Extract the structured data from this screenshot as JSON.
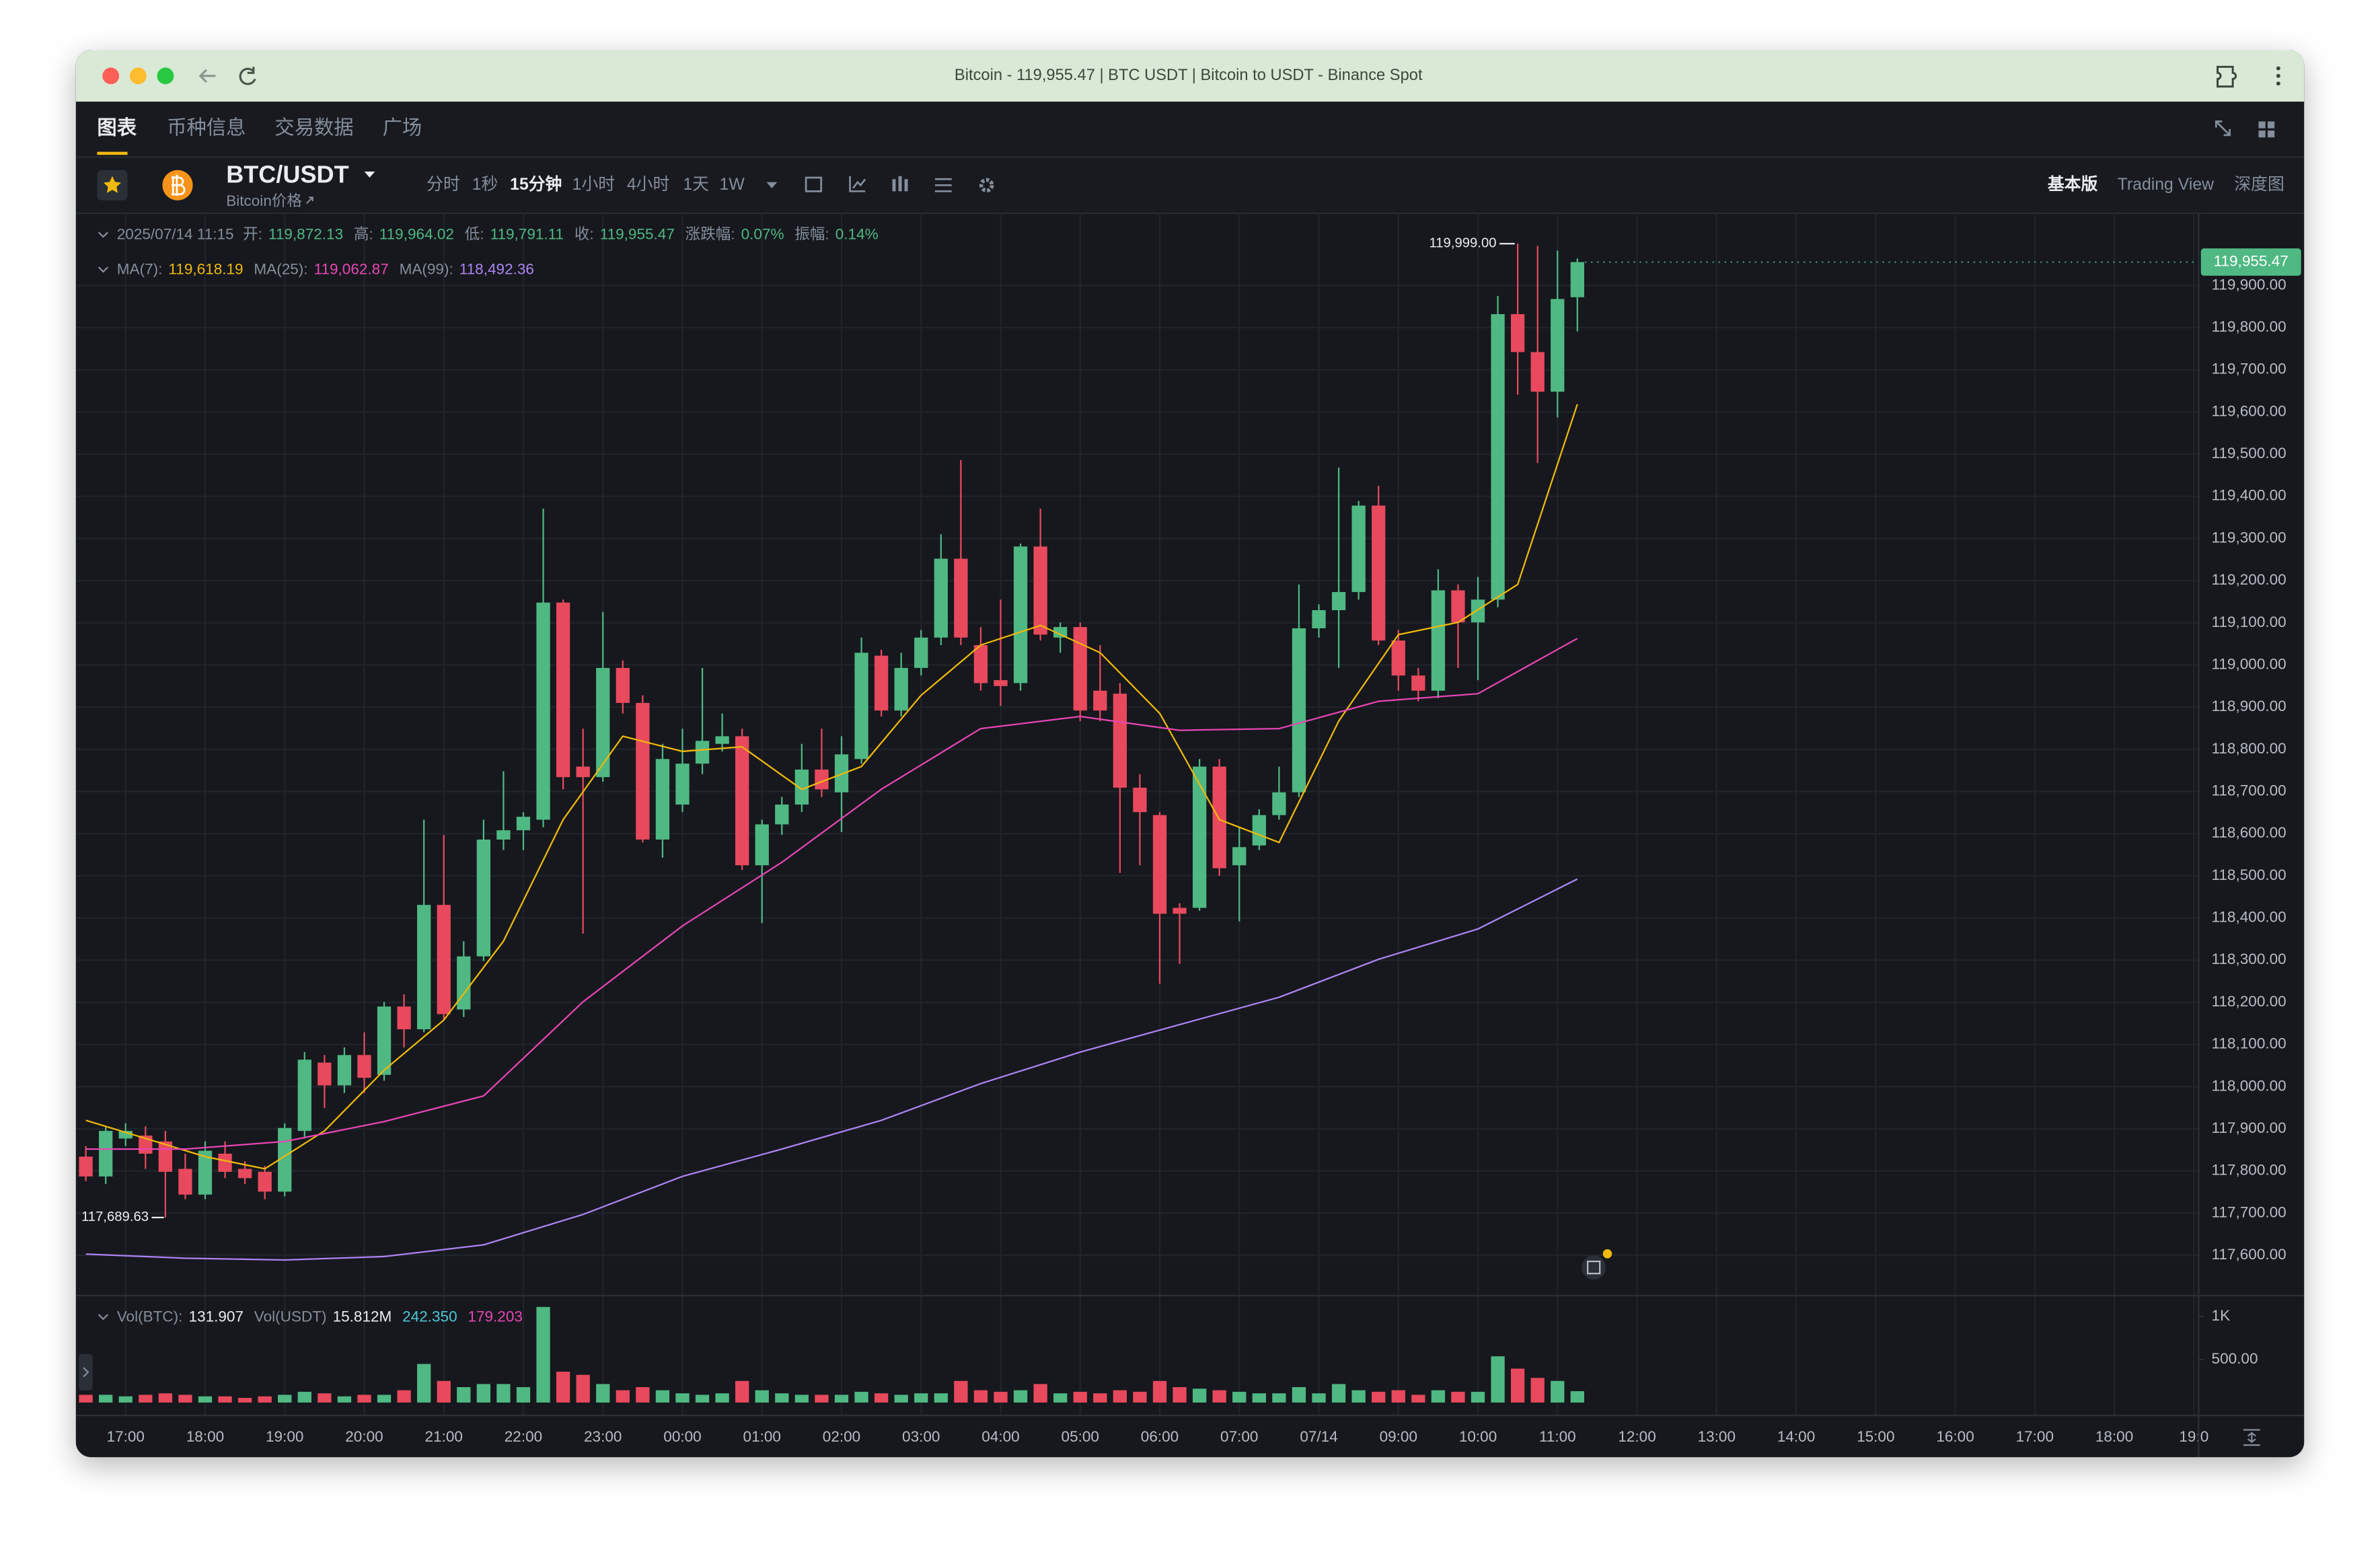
{
  "browser": {
    "title": "Bitcoin - 119,955.47 | BTC USDT | Bitcoin to USDT - Binance Spot"
  },
  "tabs": [
    "图表",
    "币种信息",
    "交易数据",
    "广场"
  ],
  "symbol": {
    "pair": "BTC/USDT",
    "subtitle": "Bitcoin价格"
  },
  "intervals": [
    "分时",
    "1秒",
    "15分钟",
    "1小时",
    "4小时",
    "1天",
    "1W"
  ],
  "views": [
    "基本版",
    "Trading View",
    "深度图"
  ],
  "info": {
    "time": "2025/07/14 11:15",
    "items": [
      {
        "label": "开:",
        "value": "119,872.13"
      },
      {
        "label": "高:",
        "value": "119,964.02"
      },
      {
        "label": "低:",
        "value": "119,791.11"
      },
      {
        "label": "收:",
        "value": "119,955.47"
      },
      {
        "label": "涨跌幅:",
        "value": "0.07%"
      },
      {
        "label": "振幅:",
        "value": "0.14%"
      }
    ]
  },
  "chart_data": {
    "type": "candlestick",
    "up_color": "#4fb883",
    "down_color": "#e8495d",
    "grid": true,
    "xlim": [
      -0.5,
      106.2
    ],
    "xticks": [
      {
        "value": 2,
        "label": "17:00"
      },
      {
        "value": 6,
        "label": "18:00"
      },
      {
        "value": 10,
        "label": "19:00"
      },
      {
        "value": 14,
        "label": "20:00"
      },
      {
        "value": 18,
        "label": "21:00"
      },
      {
        "value": 22,
        "label": "22:00"
      },
      {
        "value": 26,
        "label": "23:00"
      },
      {
        "value": 30,
        "label": "00:00"
      },
      {
        "value": 34,
        "label": "01:00"
      },
      {
        "value": 38,
        "label": "02:00"
      },
      {
        "value": 42,
        "label": "03:00"
      },
      {
        "value": 46,
        "label": "04:00"
      },
      {
        "value": 50,
        "label": "05:00"
      },
      {
        "value": 54,
        "label": "06:00"
      },
      {
        "value": 58,
        "label": "07:00"
      },
      {
        "value": 62,
        "label": "07/14"
      },
      {
        "value": 66,
        "label": "09:00"
      },
      {
        "value": 70,
        "label": "10:00"
      },
      {
        "value": 74,
        "label": "11:00"
      },
      {
        "value": 78,
        "label": "12:00"
      },
      {
        "value": 82,
        "label": "13:00"
      },
      {
        "value": 86,
        "label": "14:00"
      },
      {
        "value": 90,
        "label": "15:00"
      },
      {
        "value": 94,
        "label": "16:00"
      },
      {
        "value": 98,
        "label": "17:00"
      },
      {
        "value": 102,
        "label": "18:00"
      },
      {
        "value": 106,
        "label": "19:0"
      }
    ],
    "ylim": [
      117510,
      120073
    ],
    "yticks": [
      {
        "value": 117600,
        "label": "117,600.00"
      },
      {
        "value": 117700,
        "label": "117,700.00"
      },
      {
        "value": 117800,
        "label": "117,800.00"
      },
      {
        "value": 117900,
        "label": "117,900.00"
      },
      {
        "value": 118000,
        "label": "118,000.00"
      },
      {
        "value": 118100,
        "label": "118,100.00"
      },
      {
        "value": 118200,
        "label": "118,200.00"
      },
      {
        "value": 118300,
        "label": "118,300.00"
      },
      {
        "value": 118400,
        "label": "118,400.00"
      },
      {
        "value": 118500,
        "label": "118,500.00"
      },
      {
        "value": 118600,
        "label": "118,600.00"
      },
      {
        "value": 118700,
        "label": "118,700.00"
      },
      {
        "value": 118800,
        "label": "118,800.00"
      },
      {
        "value": 118900,
        "label": "118,900.00"
      },
      {
        "value": 119000,
        "label": "119,000.00"
      },
      {
        "value": 119100,
        "label": "119,100.00"
      },
      {
        "value": 119200,
        "label": "119,200.00"
      },
      {
        "value": 119300,
        "label": "119,300.00"
      },
      {
        "value": 119400,
        "label": "119,400.00"
      },
      {
        "value": 119500,
        "label": "119,500.00"
      },
      {
        "value": 119600,
        "label": "119,600.00"
      },
      {
        "value": 119700,
        "label": "119,700.00"
      },
      {
        "value": 119800,
        "label": "119,800.00"
      },
      {
        "value": 119900,
        "label": "119,900.00"
      }
    ],
    "open": [
      117834,
      117787,
      117877,
      117884,
      117870,
      117805,
      117744,
      117841,
      117805,
      117798,
      117751,
      117895,
      118057,
      118003,
      118075,
      118028,
      118190,
      118136,
      118431,
      118183,
      118309,
      118586,
      118608,
      118633,
      119148,
      118759,
      118734,
      118993,
      118910,
      118586,
      118669,
      118766,
      118813,
      118831,
      118525,
      118622,
      118669,
      118752,
      118698,
      118777,
      119022,
      118892,
      118993,
      119065,
      119252,
      119047,
      118964,
      118957,
      119281,
      119065,
      119090,
      118939,
      118932,
      118709,
      118644,
      118424,
      118424,
      118759,
      118525,
      118572,
      118644,
      118698,
      119087,
      119130,
      119173,
      119378,
      119058,
      118975,
      118939,
      119177,
      119101,
      119155,
      119832,
      119742,
      119648,
      119872.13
    ],
    "high": [
      117859,
      117906,
      117913,
      117906,
      117895,
      117841,
      117870,
      117870,
      117823,
      117812,
      117913,
      118082,
      118075,
      118093,
      118129,
      118201,
      118219,
      118633,
      118597,
      118345,
      118633,
      118748,
      118651,
      119371,
      119155,
      118849,
      119126,
      119011,
      118928,
      118813,
      118849,
      118993,
      118885,
      118849,
      118633,
      118687,
      118813,
      118849,
      118831,
      119065,
      119036,
      119029,
      119083,
      119310,
      119486,
      119090,
      119155,
      119288,
      119371,
      119101,
      119101,
      119047,
      118957,
      118741,
      118651,
      118435,
      118777,
      118777,
      118615,
      118658,
      118759,
      119191,
      119144,
      119468,
      119389,
      119425,
      119083,
      118993,
      119227,
      119191,
      119209,
      119875,
      119999,
      119994,
      119983,
      119964.02
    ],
    "low": [
      117776,
      117769,
      117859,
      117805,
      117689.63,
      117733,
      117733,
      117783,
      117769,
      117733,
      117740,
      117877,
      117949,
      117985,
      117985,
      118014,
      118093,
      118129,
      118158,
      118165,
      118298,
      118561,
      118561,
      118615,
      118705,
      118363,
      118723,
      118885,
      118579,
      118543,
      118651,
      118741,
      118795,
      118514,
      118388,
      118597,
      118651,
      118687,
      118604,
      118766,
      118878,
      118878,
      118975,
      119047,
      119047,
      118939,
      118903,
      118939,
      119058,
      119029,
      118867,
      118867,
      118507,
      118525,
      118244,
      118291,
      118417,
      118500,
      118392,
      118561,
      118633,
      118687,
      119065,
      118993,
      119155,
      119047,
      118939,
      118914,
      118921,
      118993,
      118964,
      119137,
      119641,
      119479,
      119587,
      119791.11
    ],
    "close": [
      117787,
      117895,
      117895,
      117841,
      117798,
      117744,
      117848,
      117798,
      117783,
      117751,
      117902,
      118064,
      118003,
      118075,
      118021,
      118190,
      118136,
      118431,
      118172,
      118309,
      118586,
      118608,
      118640,
      119148,
      118734,
      118734,
      118993,
      118910,
      118586,
      118777,
      118766,
      118820,
      118831,
      118525,
      118622,
      118669,
      118752,
      118705,
      118788,
      119029,
      118892,
      118993,
      119065,
      119252,
      119065,
      118957,
      118950,
      119281,
      119072,
      119090,
      118892,
      118892,
      118709,
      118651,
      118410,
      118410,
      118759,
      118518,
      118568,
      118644,
      118698,
      119087,
      119130,
      119173,
      119378,
      119058,
      118975,
      118939,
      119177,
      119101,
      119155,
      119832,
      119742,
      119648,
      119868,
      119955.47
    ],
    "ma_lines": [
      {
        "name": "MA(7):",
        "color": "#f0b90b",
        "value_label": "119,618.19",
        "x": [
          0,
          3,
          6,
          9,
          12,
          15,
          18,
          21,
          24,
          27,
          30,
          33,
          36,
          39,
          42,
          45,
          48,
          51,
          54,
          57,
          60,
          63,
          66,
          69,
          72,
          75
        ],
        "values": [
          117920,
          117877,
          117834,
          117805,
          117895,
          118039,
          118158,
          118345,
          118633,
          118831,
          118795,
          118806,
          118705,
          118759,
          118928,
          119047,
          119094,
          119029,
          118885,
          118633,
          118579,
          118867,
          119072,
          119101,
          119191,
          119618.19
        ]
      },
      {
        "name": "MA(25):",
        "color": "#e846b4",
        "value_label": "119,062.87",
        "x": [
          0,
          5,
          10,
          15,
          20,
          25,
          30,
          35,
          40,
          45,
          50,
          55,
          60,
          65,
          70,
          75
        ],
        "values": [
          117852,
          117852,
          117870,
          117917,
          117978,
          118201,
          118381,
          118532,
          118705,
          118849,
          118878,
          118845,
          118849,
          118914,
          118932,
          119062.87
        ]
      },
      {
        "name": "MA(99):",
        "color": "#ad84f3",
        "value_label": "118,492.36",
        "x": [
          0,
          5,
          10,
          15,
          20,
          25,
          30,
          35,
          40,
          45,
          50,
          55,
          60,
          65,
          70,
          75
        ],
        "values": [
          117603,
          117593,
          117589,
          117597,
          117625,
          117697,
          117787,
          117852,
          117920,
          118007,
          118082,
          118147,
          118212,
          118302,
          118374,
          118492.36
        ]
      }
    ],
    "last_price": {
      "value": 119955.47,
      "label": "119,955.47"
    },
    "high_marker": {
      "value": 119999,
      "label": "119,999.00"
    },
    "low_marker": {
      "value": 117689.63,
      "label": "117,689.63"
    },
    "volume": {
      "ylim": [
        0,
        1163
      ],
      "yticks": [
        {
          "value": 1000,
          "label": "1K"
        },
        {
          "value": 500,
          "label": "500.00"
        }
      ],
      "values": [
        90,
        90,
        72,
        90,
        107,
        90,
        72,
        72,
        54,
        72,
        90,
        125,
        107,
        72,
        90,
        90,
        143,
        448,
        251,
        179,
        215,
        215,
        179,
        1110,
        358,
        322,
        215,
        143,
        179,
        143,
        107,
        90,
        107,
        251,
        143,
        107,
        90,
        90,
        90,
        125,
        107,
        90,
        107,
        107,
        251,
        143,
        125,
        143,
        215,
        107,
        125,
        107,
        143,
        125,
        251,
        179,
        161,
        143,
        125,
        107,
        107,
        179,
        107,
        215,
        143,
        125,
        143,
        90,
        143,
        125,
        125,
        537,
        394,
        286,
        251,
        131.907
      ],
      "legend": [
        {
          "text": "Vol(BTC):",
          "color": "#848e9c"
        },
        {
          "text": "131.907",
          "color": "#eaecef"
        },
        {
          "text": "Vol(USDT)",
          "color": "#848e9c"
        },
        {
          "text": "15.812M",
          "color": "#eaecef"
        },
        {
          "text": "242.350",
          "color": "#4bc7d6"
        },
        {
          "text": "179.203",
          "color": "#e846b4"
        }
      ]
    }
  }
}
